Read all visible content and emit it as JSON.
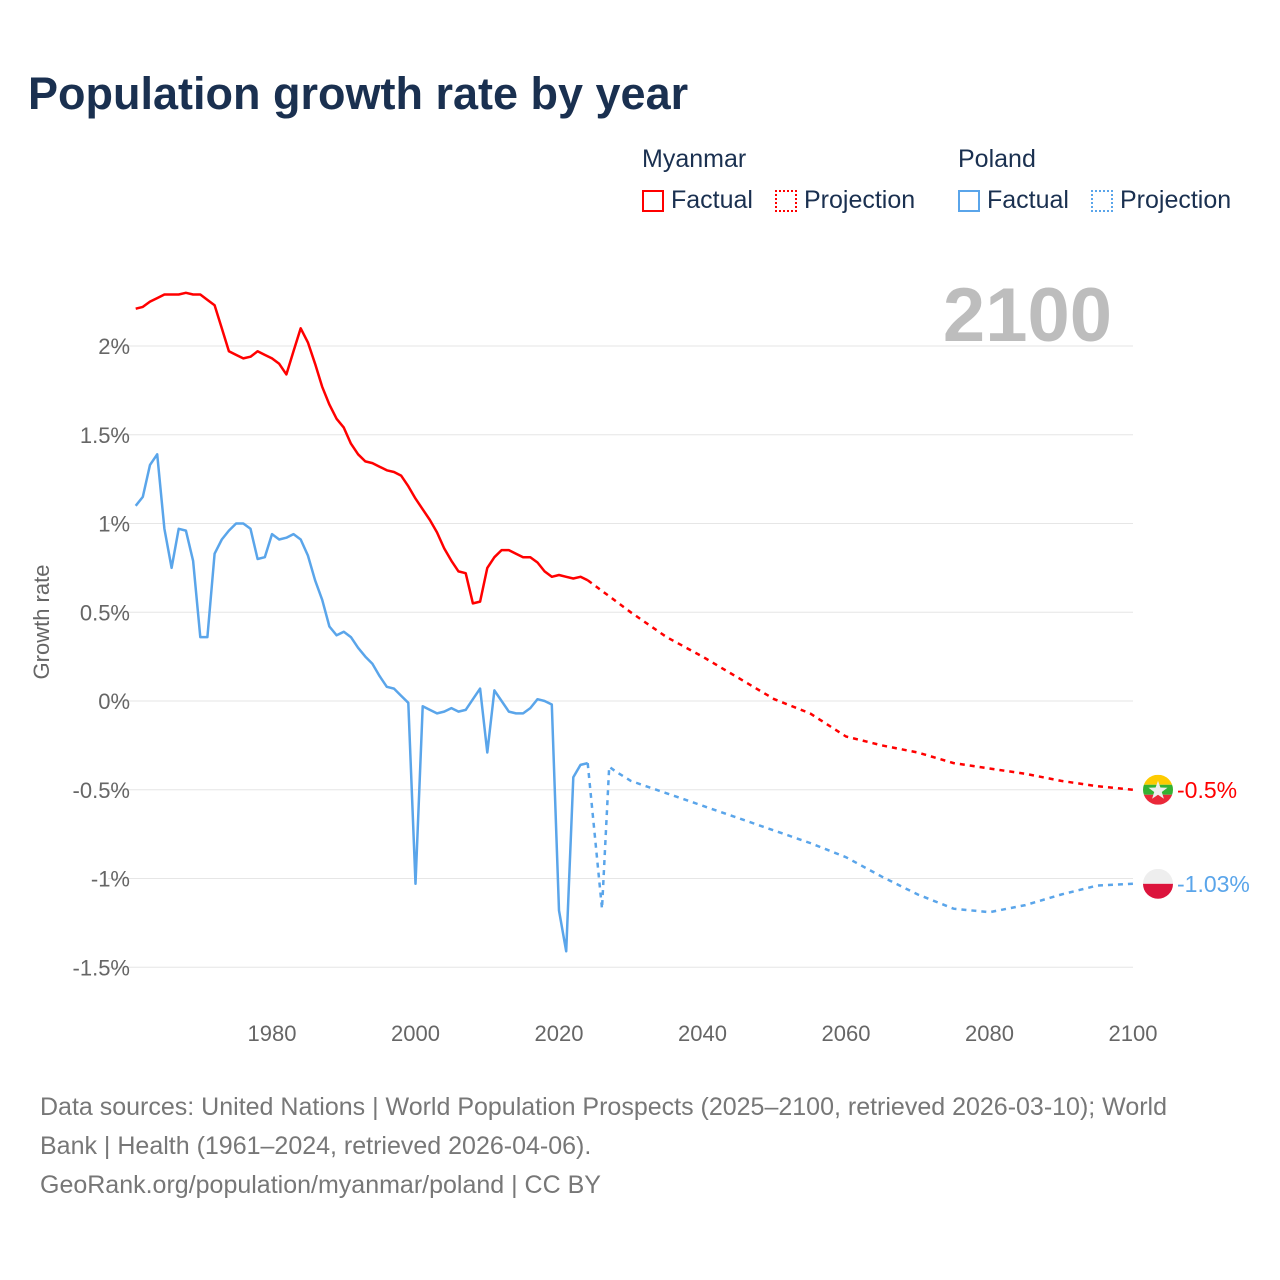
{
  "chart_data": {
    "type": "line",
    "title": "Population growth rate by year",
    "ylabel": "Growth rate",
    "xlabel": "",
    "xlim": [
      1961,
      2100
    ],
    "ylim": [
      -1.75,
      2.4
    ],
    "x_ticks": [
      1980,
      2000,
      2020,
      2040,
      2060,
      2080,
      2100
    ],
    "y_ticks": [
      2,
      1.5,
      1,
      0.5,
      0,
      -0.5,
      -1,
      -1.5
    ],
    "y_tick_labels": [
      "2%",
      "1.5%",
      "1%",
      "0.5%",
      "0%",
      "-0.5%",
      "-1%",
      "-1.5%"
    ],
    "grid": true,
    "current_year": "2100",
    "legend": {
      "placement": "top-right",
      "groups": [
        {
          "name": "Myanmar",
          "factual": "Factual",
          "projection": "Projection"
        },
        {
          "name": "Poland",
          "factual": "Factual",
          "projection": "Projection"
        }
      ]
    },
    "series": [
      {
        "name": "Myanmar",
        "color": "#ff0000",
        "end_label": "-0.5%",
        "factual": {
          "x": [
            1961,
            1962,
            1963,
            1964,
            1965,
            1966,
            1967,
            1968,
            1969,
            1970,
            1971,
            1972,
            1973,
            1974,
            1975,
            1976,
            1977,
            1978,
            1979,
            1980,
            1981,
            1982,
            1983,
            1984,
            1985,
            1986,
            1987,
            1988,
            1989,
            1990,
            1991,
            1992,
            1993,
            1994,
            1995,
            1996,
            1997,
            1998,
            1999,
            2000,
            2001,
            2002,
            2003,
            2004,
            2005,
            2006,
            2007,
            2008,
            2009,
            2010,
            2011,
            2012,
            2013,
            2014,
            2015,
            2016,
            2017,
            2018,
            2019,
            2020,
            2021,
            2022,
            2023,
            2024
          ],
          "y": [
            2.21,
            2.22,
            2.25,
            2.27,
            2.29,
            2.29,
            2.29,
            2.3,
            2.29,
            2.29,
            2.26,
            2.23,
            2.1,
            1.97,
            1.95,
            1.93,
            1.94,
            1.97,
            1.95,
            1.93,
            1.9,
            1.84,
            1.97,
            2.1,
            2.02,
            1.9,
            1.77,
            1.67,
            1.59,
            1.54,
            1.45,
            1.39,
            1.35,
            1.34,
            1.32,
            1.3,
            1.29,
            1.27,
            1.21,
            1.14,
            1.08,
            1.02,
            0.95,
            0.86,
            0.79,
            0.73,
            0.72,
            0.55,
            0.56,
            0.75,
            0.81,
            0.85,
            0.85,
            0.83,
            0.81,
            0.81,
            0.78,
            0.73,
            0.7,
            0.71,
            0.7,
            0.69,
            0.7,
            0.68
          ]
        },
        "projection": {
          "x": [
            2024,
            2025,
            2030,
            2035,
            2040,
            2045,
            2050,
            2055,
            2060,
            2065,
            2070,
            2075,
            2080,
            2085,
            2090,
            2095,
            2100
          ],
          "y": [
            0.68,
            0.65,
            0.5,
            0.36,
            0.25,
            0.13,
            0.01,
            -0.07,
            -0.2,
            -0.25,
            -0.29,
            -0.35,
            -0.38,
            -0.41,
            -0.45,
            -0.48,
            -0.5
          ]
        }
      },
      {
        "name": "Poland",
        "color": "#5aa5ea",
        "end_label": "-1.03%",
        "factual": {
          "x": [
            1961,
            1962,
            1963,
            1964,
            1965,
            1966,
            1967,
            1968,
            1969,
            1970,
            1971,
            1972,
            1973,
            1974,
            1975,
            1976,
            1977,
            1978,
            1979,
            1980,
            1981,
            1982,
            1983,
            1984,
            1985,
            1986,
            1987,
            1988,
            1989,
            1990,
            1991,
            1992,
            1993,
            1994,
            1995,
            1996,
            1997,
            1998,
            1999,
            2000,
            2001,
            2002,
            2003,
            2004,
            2005,
            2006,
            2007,
            2008,
            2009,
            2010,
            2011,
            2012,
            2013,
            2014,
            2015,
            2016,
            2017,
            2018,
            2019,
            2020,
            2021,
            2022,
            2023,
            2024
          ],
          "y": [
            1.1,
            1.15,
            1.33,
            1.39,
            0.97,
            0.75,
            0.97,
            0.96,
            0.79,
            0.36,
            0.36,
            0.83,
            0.91,
            0.96,
            1.0,
            1.0,
            0.97,
            0.8,
            0.81,
            0.94,
            0.91,
            0.92,
            0.94,
            0.91,
            0.82,
            0.68,
            0.57,
            0.42,
            0.37,
            0.39,
            0.36,
            0.3,
            0.25,
            0.21,
            0.14,
            0.08,
            0.07,
            0.03,
            -0.01,
            -1.03,
            -0.03,
            -0.05,
            -0.07,
            -0.06,
            -0.04,
            -0.06,
            -0.05,
            0.01,
            0.07,
            -0.29,
            0.06,
            0.0,
            -0.06,
            -0.07,
            -0.07,
            -0.04,
            0.01,
            0.0,
            -0.02,
            -1.18,
            -1.41,
            -0.43,
            -0.36,
            -0.35
          ]
        },
        "projection": {
          "x": [
            2024,
            2026,
            2027,
            2028,
            2030,
            2035,
            2040,
            2045,
            2050,
            2055,
            2060,
            2065,
            2070,
            2075,
            2080,
            2085,
            2090,
            2095,
            2100
          ],
          "y": [
            -0.35,
            -1.17,
            -0.37,
            -0.4,
            -0.45,
            -0.52,
            -0.59,
            -0.66,
            -0.73,
            -0.8,
            -0.88,
            -0.99,
            -1.09,
            -1.17,
            -1.19,
            -1.15,
            -1.09,
            -1.04,
            -1.03
          ]
        }
      }
    ]
  },
  "footer": {
    "sources": "Data sources: United Nations | World Population Prospects (2025–2100, retrieved 2026-03-10); World Bank | Health (1961–2024, retrieved 2026-04-06).",
    "credit": "GeoRank.org/population/myanmar/poland | CC BY"
  }
}
